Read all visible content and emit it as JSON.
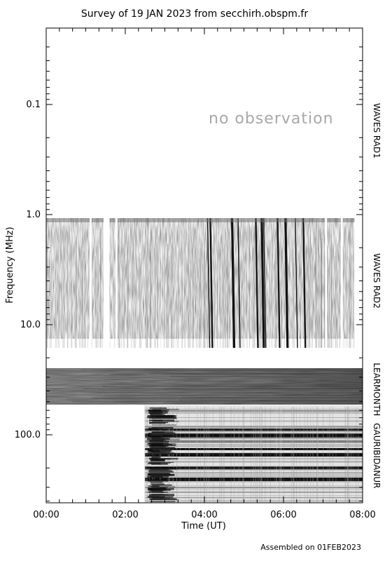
{
  "chart_data": {
    "type": "heatmap",
    "title": "Survey of 19 JAN 2023 from secchirh.obspm.fr",
    "xlabel": "Time (UT)",
    "ylabel": "Frequency (MHz)",
    "x_tick_labels": [
      "00:00",
      "02:00",
      "04:00",
      "06:00",
      "08:00"
    ],
    "x_range_hours": [
      0,
      8
    ],
    "y_scale": "log",
    "y_tick_labels": [
      "0.1",
      "1.0",
      "10.0",
      "100.0"
    ],
    "y_tick_values": [
      0.1,
      1.0,
      10.0,
      100.0
    ],
    "y_range_mhz": [
      0.02,
      400
    ],
    "grid": false,
    "colormap": "inverted grayscale",
    "panels": [
      {
        "label": "WAVES RAD1",
        "freq_range_mhz": [
          0.02,
          1.0
        ],
        "note": "no observation",
        "coverage_hours": []
      },
      {
        "label": "WAVES RAD2",
        "freq_range_mhz": [
          1.0,
          16.0
        ],
        "coverage_hours": [
          [
            0.0,
            7.8
          ]
        ],
        "gap_hours": [
          [
            1.1,
            1.15
          ],
          [
            1.45,
            1.6
          ],
          [
            1.75,
            1.8
          ],
          [
            7.05,
            7.1
          ],
          [
            7.45,
            7.5
          ]
        ],
        "burst_hours": [
          4.08,
          4.15,
          4.7,
          4.85,
          5.3,
          5.45,
          5.5,
          5.85,
          6.05,
          6.3,
          6.5
        ]
      },
      {
        "label": "LEARMONTH",
        "freq_range_mhz": [
          25.0,
          60.0
        ],
        "coverage_hours": [
          [
            0.0,
            8.0
          ]
        ]
      },
      {
        "label": "GAURIBIDANUR",
        "freq_range_mhz": [
          60.0,
          400.0
        ],
        "coverage_hours": [
          [
            2.5,
            8.0
          ]
        ],
        "interference_bands_mhz": [
          90,
          100,
          135,
          150,
          200,
          250
        ]
      }
    ],
    "footer": "Assembled on 01FEB2023"
  }
}
